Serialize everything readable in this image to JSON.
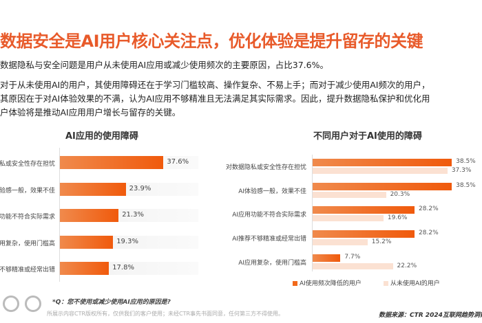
{
  "header": {
    "title": "数据安全是AI用户核心关注点，优化体验是提升留存的关键"
  },
  "body": {
    "p1": "数据隐私与安全问题是用户从未使用AI应用或减少使用频次的主要原因，占比37.6%。",
    "p2_lines": [
      "对于从未使用AI的用户，其使用障碍还在于学习门槛较高、操作复杂、不易上手；而对于减少使用AI频次的用户，",
      "其原因在于对AI体验效果的不满，认为AI应用不够精准且无法满足其实际需求。因此，提升数据隐私保护和优化用",
      "户体验将是推动AI应用用户增长与留存的关键。"
    ]
  },
  "chart_data": [
    {
      "type": "bar",
      "orientation": "horizontal",
      "title": "AI应用的使用障碍",
      "categories": [
        "私或安全性存在担忧",
        "验感一般，效果不佳",
        "功能不符合实际需求",
        "用复杂，使用门槛高",
        "不够精准或经常出错"
      ],
      "values": [
        37.6,
        23.9,
        21.3,
        19.3,
        17.8
      ],
      "labels": [
        "37.6%",
        "23.9%",
        "21.3%",
        "19.3%",
        "17.8%"
      ],
      "color": "#f26a1b"
    },
    {
      "type": "bar",
      "orientation": "horizontal",
      "title": "不同用户对于AI使用的障碍",
      "categories": [
        "对数据隐私或安全性存在担忧",
        "AI体验感一般，效果不佳",
        "AI应用功能不符合实际需求",
        "AI推荐不够精准或经常出错",
        "AI应用复杂，使用门槛高"
      ],
      "series": [
        {
          "name": "AI使用频次降低的用户",
          "values": [
            38.5,
            38.5,
            28.2,
            28.2,
            7.7
          ],
          "labels": [
            "38.5%",
            "38.5%",
            "28.2%",
            "28.2%",
            "7.7%"
          ],
          "color": "#f26a1b"
        },
        {
          "name": "从未使用AI的用户",
          "values": [
            37.3,
            20.3,
            19.6,
            15.2,
            22.2
          ],
          "labels": [
            "37.3%",
            "20.3%",
            "19.6%",
            "15.2%",
            "22.2%"
          ],
          "color": "#fbe1d2"
        }
      ],
      "legend": "bottom"
    }
  ],
  "footer": {
    "question": "*Q：您不使用或减少使用AI应用的原因是?",
    "copyright": "所展示内容CTR版权所有，仅供我们的客户使用；未经CTR事先书面同意，任何第三方不得使用。",
    "source": "数据来源：CTR 2024互联网趋势洞察研"
  }
}
